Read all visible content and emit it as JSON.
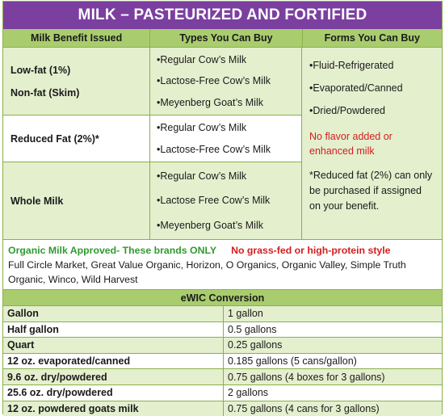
{
  "title": "MILK – PASTEURIZED AND FORTIFIED",
  "headers": {
    "benefit": "Milk Benefit Issued",
    "types": "Types You Can Buy",
    "forms": "Forms You Can Buy"
  },
  "rows": [
    {
      "benefits": [
        "Low-fat (1%)",
        "Non-fat (Skim)"
      ],
      "types": [
        "•Regular Cow’s Milk",
        "•Lactose-Free Cow’s Milk",
        "•Meyenberg Goat’s Milk"
      ]
    },
    {
      "benefits": [
        "Reduced Fat (2%)*"
      ],
      "types": [
        "•Regular Cow’s Milk",
        "•Lactose-Free Cow’s Milk"
      ]
    },
    {
      "benefits": [
        "Whole Milk"
      ],
      "types": [
        "•Regular Cow’s Milk",
        "•Lactose Free Cow’s Milk",
        "•Meyenberg Goat’s Milk"
      ]
    }
  ],
  "forms": [
    "•Fluid-Refrigerated",
    "•Evaporated/Canned",
    "•Dried/Powdered"
  ],
  "no_flavor_note": "No flavor added or enhanced milk",
  "reduced_fat_note": "*Reduced fat (2%) can only be purchased if assigned on your benefit.",
  "organic": {
    "approved": "Organic Milk Approved- These brands ONLY",
    "restriction": "No grass-fed or high-protein style",
    "brands": "Full Circle Market, Great Value Organic, Horizon, O Organics, Organic Valley, Simple Truth Organic, Winco, Wild Harvest"
  },
  "conversion": {
    "title": "eWIC Conversion",
    "rows": [
      [
        "Gallon",
        "1 gallon"
      ],
      [
        "Half gallon",
        "0.5 gallons"
      ],
      [
        "Quart",
        "0.25 gallons"
      ],
      [
        "12 oz. evaporated/canned",
        "0.185 gallons (5 cans/gallon)"
      ],
      [
        "9.6 oz. dry/powdered",
        "0.75 gallons (4 boxes for 3 gallons)"
      ],
      [
        "25.6 oz. dry/powdered",
        "2 gallons"
      ],
      [
        "12 oz. powdered goats milk",
        "0.75 gallons (4 cans for 3 gallons)"
      ]
    ]
  }
}
